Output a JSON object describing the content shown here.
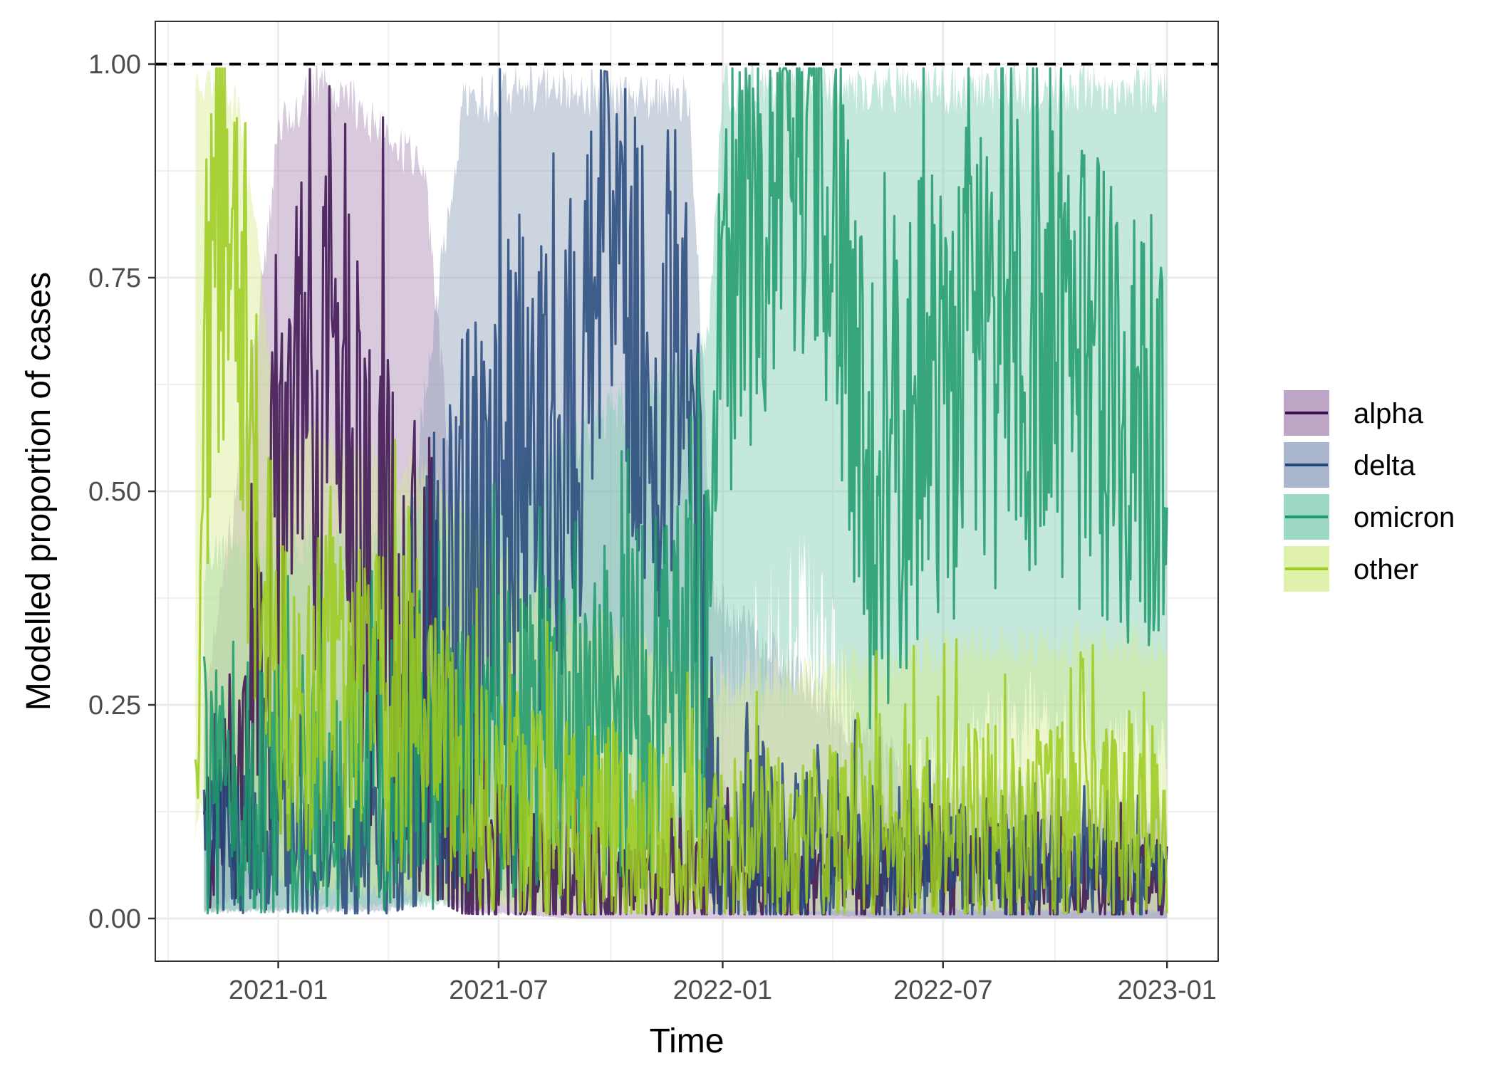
{
  "chart_data": {
    "type": "line",
    "title": "",
    "xlabel": "Time",
    "ylabel": "Modelled proportion of cases",
    "x_range": [
      "2020-09-22",
      "2023-02-12"
    ],
    "ylim": [
      -0.05,
      1.05
    ],
    "x_ticks": [
      {
        "date": "2021-01-01",
        "label": "2021-01"
      },
      {
        "date": "2021-07-01",
        "label": "2021-07"
      },
      {
        "date": "2022-01-01",
        "label": "2022-01"
      },
      {
        "date": "2022-07-01",
        "label": "2022-07"
      },
      {
        "date": "2023-01-01",
        "label": "2023-01"
      }
    ],
    "y_ticks": [
      {
        "value": 0,
        "label": "0.00"
      },
      {
        "value": 0.25,
        "label": "0.25"
      },
      {
        "value": 0.5,
        "label": "0.50"
      },
      {
        "value": 0.75,
        "label": "0.75"
      },
      {
        "value": 1,
        "label": "1.00"
      }
    ],
    "reference_line": {
      "y": 1.0,
      "style": "dashed",
      "color": "#000000"
    },
    "grid": true,
    "legend_position": "right",
    "series": [
      {
        "name": "alpha",
        "color": "#3b0f4f",
        "band_color": "#a888b4",
        "points": [
          {
            "x": "2020-11-01",
            "y": 0.1,
            "lo": 0.01,
            "hi": 0.3
          },
          {
            "x": "2020-12-01",
            "y": 0.2,
            "lo": 0.03,
            "hi": 0.55
          },
          {
            "x": "2021-01-01",
            "y": 0.45,
            "lo": 0.1,
            "hi": 0.95
          },
          {
            "x": "2021-01-15",
            "y": 0.76,
            "lo": 0.2,
            "hi": 0.98
          },
          {
            "x": "2021-02-01",
            "y": 0.55,
            "lo": 0.15,
            "hi": 1.0
          },
          {
            "x": "2021-02-20",
            "y": 0.78,
            "lo": 0.2,
            "hi": 1.0
          },
          {
            "x": "2021-03-15",
            "y": 0.45,
            "lo": 0.1,
            "hi": 0.97
          },
          {
            "x": "2021-04-01",
            "y": 0.4,
            "lo": 0.08,
            "hi": 0.95
          },
          {
            "x": "2021-05-01",
            "y": 0.3,
            "lo": 0.05,
            "hi": 0.9
          },
          {
            "x": "2021-06-01",
            "y": 0.08,
            "lo": 0.01,
            "hi": 0.4
          },
          {
            "x": "2021-09-01",
            "y": 0.05,
            "lo": 0.0,
            "hi": 0.2
          },
          {
            "x": "2022-03-01",
            "y": 0.05,
            "lo": 0.0,
            "hi": 0.15
          },
          {
            "x": "2022-10-01",
            "y": 0.05,
            "lo": 0.0,
            "hi": 0.15
          },
          {
            "x": "2023-01-01",
            "y": 0.05,
            "lo": 0.0,
            "hi": 0.15
          }
        ]
      },
      {
        "name": "delta",
        "color": "#25487a",
        "band_color": "#8e9fbb",
        "points": [
          {
            "x": "2020-11-01",
            "y": 0.1,
            "lo": 0.01,
            "hi": 0.25
          },
          {
            "x": "2021-04-01",
            "y": 0.1,
            "lo": 0.01,
            "hi": 0.3
          },
          {
            "x": "2021-06-01",
            "y": 0.4,
            "lo": 0.05,
            "hi": 0.98
          },
          {
            "x": "2021-07-15",
            "y": 0.55,
            "lo": 0.15,
            "hi": 1.0
          },
          {
            "x": "2021-09-01",
            "y": 0.6,
            "lo": 0.2,
            "hi": 1.0
          },
          {
            "x": "2021-10-01",
            "y": 0.89,
            "lo": 0.25,
            "hi": 0.99
          },
          {
            "x": "2021-11-01",
            "y": 0.65,
            "lo": 0.2,
            "hi": 0.99
          },
          {
            "x": "2021-12-05",
            "y": 0.7,
            "lo": 0.2,
            "hi": 0.99
          },
          {
            "x": "2021-12-25",
            "y": 0.1,
            "lo": 0.01,
            "hi": 0.4
          },
          {
            "x": "2022-06-01",
            "y": 0.08,
            "lo": 0.0,
            "hi": 0.2
          },
          {
            "x": "2023-01-01",
            "y": 0.05,
            "lo": 0.0,
            "hi": 0.15
          }
        ]
      },
      {
        "name": "omicron",
        "color": "#1e9a6c",
        "band_color": "#7ccbb0",
        "points": [
          {
            "x": "2020-11-01",
            "y": 0.15,
            "lo": 0.01,
            "hi": 0.45
          },
          {
            "x": "2021-06-01",
            "y": 0.2,
            "lo": 0.02,
            "hi": 0.5
          },
          {
            "x": "2021-12-20",
            "y": 0.3,
            "lo": 0.05,
            "hi": 0.7
          },
          {
            "x": "2022-01-01",
            "y": 0.75,
            "lo": 0.3,
            "hi": 1.0
          },
          {
            "x": "2022-03-20",
            "y": 0.91,
            "lo": 0.4,
            "hi": 1.0
          },
          {
            "x": "2022-05-01",
            "y": 0.55,
            "lo": 0.15,
            "hi": 1.0
          },
          {
            "x": "2022-07-01",
            "y": 0.65,
            "lo": 0.2,
            "hi": 1.0
          },
          {
            "x": "2022-09-01",
            "y": 0.7,
            "lo": 0.25,
            "hi": 1.0
          },
          {
            "x": "2023-01-01",
            "y": 0.6,
            "lo": 0.2,
            "hi": 1.0
          }
        ]
      },
      {
        "name": "other",
        "color": "#9ccb1f",
        "band_color": "#d6ec8f",
        "points": [
          {
            "x": "2020-10-25",
            "y": 0.41,
            "lo": 0.1,
            "hi": 1.0
          },
          {
            "x": "2020-11-15",
            "y": 0.88,
            "lo": 0.2,
            "hi": 1.0
          },
          {
            "x": "2020-12-01",
            "y": 0.68,
            "lo": 0.15,
            "hi": 0.98
          },
          {
            "x": "2021-01-01",
            "y": 0.3,
            "lo": 0.05,
            "hi": 0.6
          },
          {
            "x": "2021-05-01",
            "y": 0.25,
            "lo": 0.03,
            "hi": 0.55
          },
          {
            "x": "2021-08-01",
            "y": 0.12,
            "lo": 0.01,
            "hi": 0.4
          },
          {
            "x": "2022-01-01",
            "y": 0.1,
            "lo": 0.01,
            "hi": 0.3
          },
          {
            "x": "2022-08-01",
            "y": 0.12,
            "lo": 0.01,
            "hi": 0.35
          },
          {
            "x": "2023-01-01",
            "y": 0.12,
            "lo": 0.01,
            "hi": 0.35
          }
        ]
      }
    ]
  }
}
